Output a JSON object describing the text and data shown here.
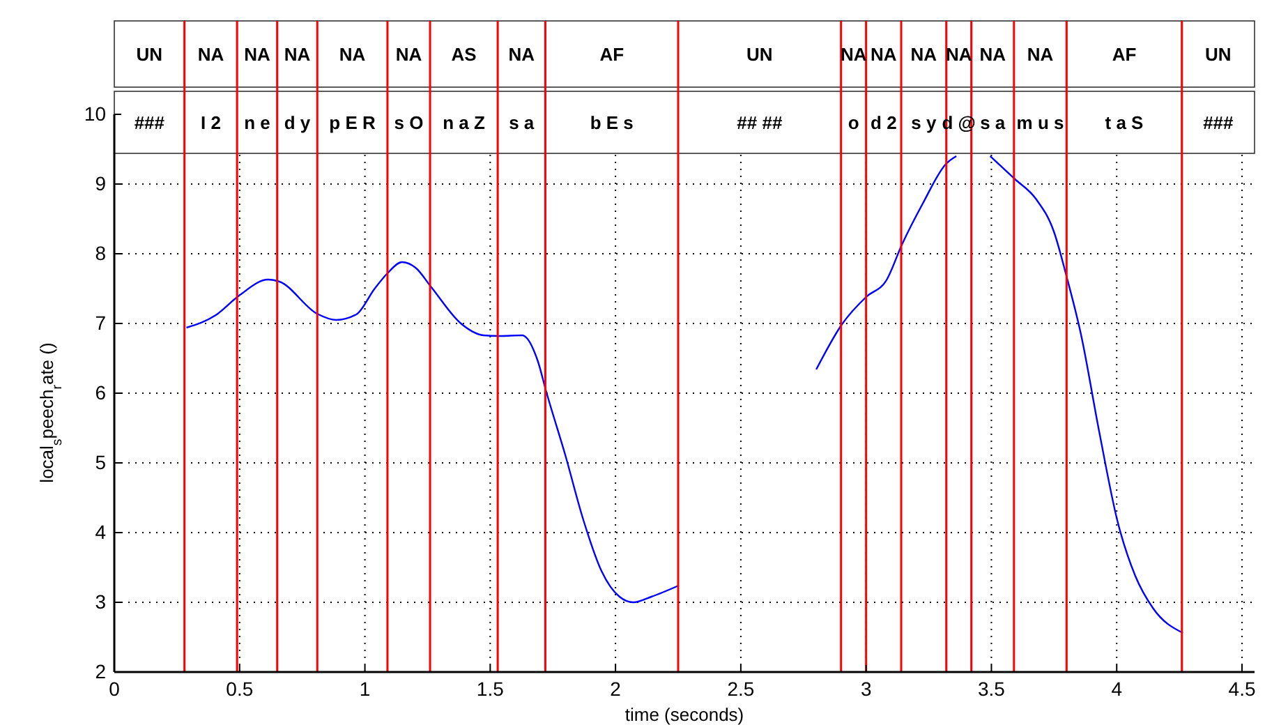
{
  "chart_data": {
    "type": "line",
    "xlabel": "time (seconds)",
    "ylabel": "local$_{s}$peech$_{r}$ate ()",
    "xlim": [
      0,
      4.55
    ],
    "xticks": [
      0,
      0.5,
      1,
      1.5,
      2,
      2.5,
      3,
      3.5,
      4,
      4.5
    ],
    "ylim": [
      2,
      10
    ],
    "yticks": [
      2,
      3,
      4,
      5,
      6,
      7,
      8,
      9,
      10
    ],
    "grid": true,
    "series": [
      {
        "color": "#0000ff",
        "x": [
          0.288,
          0.405,
          0.498,
          0.614,
          0.659,
          0.809,
          0.885,
          0.966,
          1.039,
          1.09,
          1.148,
          1.202,
          1.265,
          1.383,
          1.473,
          1.537,
          1.627,
          1.69,
          1.723,
          1.799,
          1.871,
          1.944,
          2.016,
          2.071,
          2.143,
          2.252
        ],
        "values": [
          6.94,
          7.12,
          7.4,
          7.63,
          7.6,
          7.14,
          7.05,
          7.13,
          7.5,
          7.72,
          7.88,
          7.8,
          7.52,
          7.0,
          6.83,
          6.82,
          6.83,
          6.46,
          6.03,
          5.12,
          4.19,
          3.45,
          3.08,
          3.0,
          3.08,
          3.24
        ]
      },
      {
        "color": "#0000ff",
        "x": [
          2.801,
          2.904,
          3.0,
          3.081,
          3.144,
          3.226,
          3.319,
          3.36
        ],
        "values": [
          6.34,
          6.99,
          7.38,
          7.62,
          8.14,
          8.72,
          9.29,
          9.4
        ]
      },
      {
        "color": "#0000ff",
        "x": [
          3.495,
          3.594,
          3.677,
          3.749,
          3.801,
          3.857,
          3.93,
          4.002,
          4.074,
          4.146,
          4.264
        ],
        "values": [
          9.4,
          9.07,
          8.79,
          8.32,
          7.66,
          6.85,
          5.45,
          4.18,
          3.38,
          2.91,
          2.56
        ]
      }
    ],
    "ref_lines": [
      {
        "axis": "x",
        "value": 0.28,
        "color": "#ff0000"
      },
      {
        "axis": "x",
        "value": 0.49,
        "color": "#ff0000"
      },
      {
        "axis": "x",
        "value": 0.65,
        "color": "#ff0000"
      },
      {
        "axis": "x",
        "value": 0.81,
        "color": "#ff0000"
      },
      {
        "axis": "x",
        "value": 1.09,
        "color": "#ff0000"
      },
      {
        "axis": "x",
        "value": 1.26,
        "color": "#ff0000"
      },
      {
        "axis": "x",
        "value": 1.53,
        "color": "#ff0000"
      },
      {
        "axis": "x",
        "value": 1.72,
        "color": "#ff0000"
      },
      {
        "axis": "x",
        "value": 2.25,
        "color": "#ff0000"
      },
      {
        "axis": "x",
        "value": 2.9,
        "color": "#ff0000"
      },
      {
        "axis": "x",
        "value": 3.0,
        "color": "#ff0000"
      },
      {
        "axis": "x",
        "value": 3.14,
        "color": "#ff0000"
      },
      {
        "axis": "x",
        "value": 3.32,
        "color": "#ff0000"
      },
      {
        "axis": "x",
        "value": 3.42,
        "color": "#ff0000"
      },
      {
        "axis": "x",
        "value": 3.59,
        "color": "#ff0000"
      },
      {
        "axis": "x",
        "value": 3.8,
        "color": "#ff0000"
      },
      {
        "axis": "x",
        "value": 4.26,
        "color": "#ff0000"
      }
    ],
    "bands": [
      {
        "axis": "x",
        "from": 0,
        "to": 0.28,
        "label": "UN",
        "color": "#ffffff"
      },
      {
        "axis": "x",
        "from": 0.28,
        "to": 0.49,
        "label": "NA",
        "color": "#ffffff"
      },
      {
        "axis": "x",
        "from": 0.49,
        "to": 0.65,
        "label": "NA",
        "color": "#ffffff"
      },
      {
        "axis": "x",
        "from": 0.65,
        "to": 0.81,
        "label": "NA",
        "color": "#ffffff"
      },
      {
        "axis": "x",
        "from": 0.81,
        "to": 1.09,
        "label": "NA",
        "color": "#ffffff"
      },
      {
        "axis": "x",
        "from": 1.09,
        "to": 1.26,
        "label": "NA",
        "color": "#ffffff"
      },
      {
        "axis": "x",
        "from": 1.26,
        "to": 1.53,
        "label": "AS",
        "color": "#ffffff"
      },
      {
        "axis": "x",
        "from": 1.53,
        "to": 1.72,
        "label": "NA",
        "color": "#ffffff"
      },
      {
        "axis": "x",
        "from": 1.72,
        "to": 2.25,
        "label": "AF",
        "color": "#ffffff"
      },
      {
        "axis": "x",
        "from": 2.25,
        "to": 2.9,
        "label": "UN",
        "color": "#ffffff"
      },
      {
        "axis": "x",
        "from": 2.9,
        "to": 3.0,
        "label": "NA",
        "color": "#ffffff"
      },
      {
        "axis": "x",
        "from": 3.0,
        "to": 3.14,
        "label": "NA",
        "color": "#ffffff"
      },
      {
        "axis": "x",
        "from": 3.14,
        "to": 3.32,
        "label": "NA",
        "color": "#ffffff"
      },
      {
        "axis": "x",
        "from": 3.32,
        "to": 3.42,
        "label": "NA",
        "color": "#ffffff"
      },
      {
        "axis": "x",
        "from": 3.42,
        "to": 3.59,
        "label": "NA",
        "color": "#ffffff"
      },
      {
        "axis": "x",
        "from": 3.59,
        "to": 3.8,
        "label": "NA",
        "color": "#ffffff"
      },
      {
        "axis": "x",
        "from": 3.8,
        "to": 4.26,
        "label": "AF",
        "color": "#ffffff"
      },
      {
        "axis": "x",
        "from": 4.26,
        "to": 4.55,
        "label": "UN",
        "color": "#ffffff"
      }
    ],
    "annotations": [
      "###",
      "I 2",
      "n e",
      "d y",
      "p E R",
      "s O",
      "n a Z",
      "s a",
      "b E s",
      "## ##",
      "o",
      "d 2",
      "s y",
      "d @",
      "s a",
      "m u s",
      "t a S",
      "###"
    ]
  }
}
